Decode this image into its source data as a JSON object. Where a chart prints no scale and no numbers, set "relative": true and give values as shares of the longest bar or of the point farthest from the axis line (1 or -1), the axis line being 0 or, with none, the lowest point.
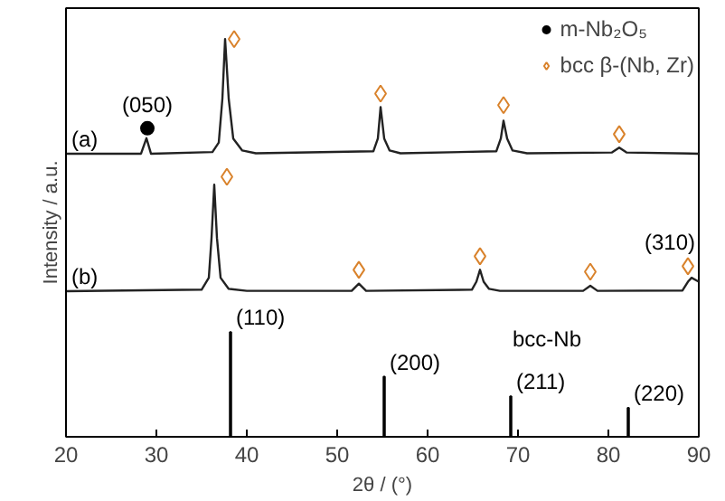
{
  "chart_data": {
    "type": "line",
    "relative": true,
    "xlabel": "2θ / (°)",
    "ylabel": "Intensity / a.u.",
    "xlim": [
      20,
      90
    ],
    "xticks": [
      20,
      30,
      40,
      50,
      60,
      70,
      80,
      90
    ],
    "grid": false,
    "legend": "top right",
    "tick_labels": "x",
    "series": [
      {
        "color": "#222222",
        "x": [
          20,
          28.3,
          28.9,
          29.4,
          36.2,
          36.9,
          37.3,
          37.6,
          38.0,
          38.5,
          39.5,
          41,
          54.0,
          54.5,
          54.8,
          55.2,
          55.8,
          57,
          67.6,
          68.1,
          68.4,
          68.8,
          69.4,
          71,
          80.4,
          81.2,
          82,
          90
        ],
        "values": [
          0.712,
          0.712,
          0.751,
          0.712,
          0.716,
          0.74,
          0.85,
          1.0,
          0.85,
          0.75,
          0.72,
          0.713,
          0.718,
          0.75,
          0.829,
          0.75,
          0.72,
          0.713,
          0.718,
          0.75,
          0.795,
          0.75,
          0.72,
          0.713,
          0.715,
          0.727,
          0.715,
          0.712
        ]
      },
      {
        "color": "#222222",
        "x": [
          20,
          35.0,
          35.8,
          36.1,
          36.4,
          36.7,
          37.1,
          38,
          40,
          51.6,
          52.4,
          53.2,
          64.9,
          65.4,
          65.8,
          66.2,
          66.8,
          68,
          77.2,
          78,
          78.8,
          88.2,
          88.8,
          89.2,
          90
        ],
        "values": [
          0.366,
          0.37,
          0.4,
          0.5,
          0.634,
          0.5,
          0.4,
          0.372,
          0.367,
          0.367,
          0.385,
          0.367,
          0.37,
          0.39,
          0.42,
          0.39,
          0.372,
          0.367,
          0.367,
          0.38,
          0.367,
          0.368,
          0.39,
          0.4,
          0.39
        ]
      },
      {
        "type": "bar",
        "name": "bcc-Nb",
        "color": "#000000",
        "x": [
          38.2,
          55.2,
          69.2,
          82.2
        ],
        "values": [
          0.263,
          0.151,
          0.102,
          0.073
        ]
      },
      {
        "type": "scatter",
        "name": "m-Nb₂O₅",
        "marker": "circle",
        "color": "#000000",
        "x": [
          29.0
        ],
        "values": [
          0.776
        ]
      },
      {
        "type": "scatter",
        "name": "bcc β-(Nb, Zr)",
        "marker": "diamond",
        "color": "#d9822b",
        "x": [
          38.6,
          54.8,
          68.4,
          81.2,
          37.8,
          52.4,
          65.8,
          78.0,
          88.8
        ],
        "values": [
          1.0,
          0.863,
          0.834,
          0.761,
          0.654,
          0.42,
          0.454,
          0.415,
          0.429
        ]
      }
    ],
    "annotations": [
      {
        "text": "(a)",
        "x": 20,
        "y": 0.712
      },
      {
        "text": "(050)",
        "x": 29.0,
        "y": 0.776
      },
      {
        "text": "(b)",
        "x": 20,
        "y": 0.366
      },
      {
        "text": "(310)",
        "x": 88.8,
        "y": 0.429
      },
      {
        "text": "(110)",
        "x": 38.2,
        "y": 0.263
      },
      {
        "text": "(200)",
        "x": 55.2,
        "y": 0.151
      },
      {
        "text": "(211)",
        "x": 69.2,
        "y": 0.102
      },
      {
        "text": "(220)",
        "x": 82.2,
        "y": 0.073
      }
    ]
  }
}
